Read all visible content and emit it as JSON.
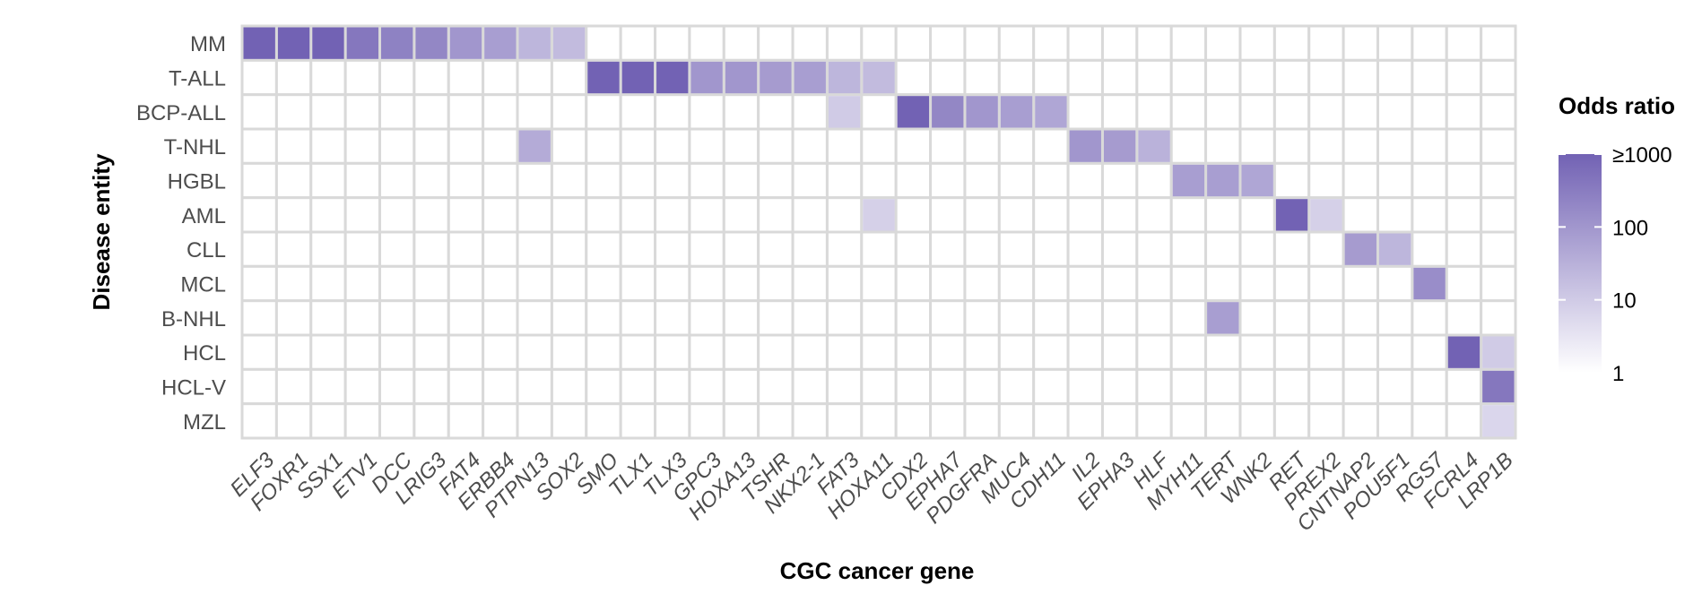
{
  "chart_data": {
    "type": "heatmap",
    "xlabel": "CGC cancer gene",
    "ylabel": "Disease entity",
    "rows": [
      "MM",
      "T-ALL",
      "BCP-ALL",
      "T-NHL",
      "HGBL",
      "AML",
      "CLL",
      "MCL",
      "B-NHL",
      "HCL",
      "HCL-V",
      "MZL"
    ],
    "columns": [
      "ELF3",
      "FOXR1",
      "SSX1",
      "ETV1",
      "DCC",
      "LRIG3",
      "FAT4",
      "ERBB4",
      "PTPN13",
      "SOX2",
      "SMO",
      "TLX1",
      "TLX3",
      "GPC3",
      "HOXA13",
      "TSHR",
      "NKX2-1",
      "FAT3",
      "HOXA11",
      "CDX2",
      "EPHA7",
      "PDGFRA",
      "MUC4",
      "CDH11",
      "IL2",
      "EPHA3",
      "HLF",
      "MYH11",
      "TERT",
      "WNK2",
      "RET",
      "PREX2",
      "CNTNAP2",
      "POU5F1",
      "RGS7",
      "FCRL4",
      "LRP1B"
    ],
    "cells": [
      {
        "row": "MM",
        "col": "ELF3",
        "odds_ratio": 1000
      },
      {
        "row": "MM",
        "col": "FOXR1",
        "odds_ratio": 1000
      },
      {
        "row": "MM",
        "col": "SSX1",
        "odds_ratio": 1000
      },
      {
        "row": "MM",
        "col": "ETV1",
        "odds_ratio": 400
      },
      {
        "row": "MM",
        "col": "DCC",
        "odds_ratio": 250
      },
      {
        "row": "MM",
        "col": "LRIG3",
        "odds_ratio": 200
      },
      {
        "row": "MM",
        "col": "FAT4",
        "odds_ratio": 100
      },
      {
        "row": "MM",
        "col": "ERBB4",
        "odds_ratio": 70
      },
      {
        "row": "MM",
        "col": "PTPN13",
        "odds_ratio": 25
      },
      {
        "row": "MM",
        "col": "SOX2",
        "odds_ratio": 20
      },
      {
        "row": "T-ALL",
        "col": "SMO",
        "odds_ratio": 1000
      },
      {
        "row": "T-ALL",
        "col": "TLX1",
        "odds_ratio": 1000
      },
      {
        "row": "T-ALL",
        "col": "TLX3",
        "odds_ratio": 1000
      },
      {
        "row": "T-ALL",
        "col": "GPC3",
        "odds_ratio": 100
      },
      {
        "row": "T-ALL",
        "col": "HOXA13",
        "odds_ratio": 100
      },
      {
        "row": "T-ALL",
        "col": "TSHR",
        "odds_ratio": 80
      },
      {
        "row": "T-ALL",
        "col": "NKX2-1",
        "odds_ratio": 70
      },
      {
        "row": "T-ALL",
        "col": "FAT3",
        "odds_ratio": 25
      },
      {
        "row": "T-ALL",
        "col": "HOXA11",
        "odds_ratio": 20
      },
      {
        "row": "BCP-ALL",
        "col": "FAT3",
        "odds_ratio": 10
      },
      {
        "row": "BCP-ALL",
        "col": "CDX2",
        "odds_ratio": 1000
      },
      {
        "row": "BCP-ALL",
        "col": "EPHA7",
        "odds_ratio": 200
      },
      {
        "row": "BCP-ALL",
        "col": "PDGFRA",
        "odds_ratio": 100
      },
      {
        "row": "BCP-ALL",
        "col": "MUC4",
        "odds_ratio": 70
      },
      {
        "row": "BCP-ALL",
        "col": "CDH11",
        "odds_ratio": 50
      },
      {
        "row": "T-NHL",
        "col": "PTPN13",
        "odds_ratio": 40
      },
      {
        "row": "T-NHL",
        "col": "IL2",
        "odds_ratio": 100
      },
      {
        "row": "T-NHL",
        "col": "EPHA3",
        "odds_ratio": 80
      },
      {
        "row": "T-NHL",
        "col": "HLF",
        "odds_ratio": 30
      },
      {
        "row": "HGBL",
        "col": "MYH11",
        "odds_ratio": 70
      },
      {
        "row": "HGBL",
        "col": "TERT",
        "odds_ratio": 70
      },
      {
        "row": "HGBL",
        "col": "WNK2",
        "odds_ratio": 50
      },
      {
        "row": "AML",
        "col": "HOXA11",
        "odds_ratio": 8
      },
      {
        "row": "AML",
        "col": "RET",
        "odds_ratio": 1000
      },
      {
        "row": "AML",
        "col": "PREX2",
        "odds_ratio": 8
      },
      {
        "row": "CLL",
        "col": "CNTNAP2",
        "odds_ratio": 80
      },
      {
        "row": "CLL",
        "col": "POU5F1",
        "odds_ratio": 25
      },
      {
        "row": "MCL",
        "col": "RGS7",
        "odds_ratio": 150
      },
      {
        "row": "B-NHL",
        "col": "TERT",
        "odds_ratio": 70
      },
      {
        "row": "HCL",
        "col": "FCRL4",
        "odds_ratio": 1000
      },
      {
        "row": "HCL",
        "col": "LRP1B",
        "odds_ratio": 10
      },
      {
        "row": "HCL-V",
        "col": "LRP1B",
        "odds_ratio": 400
      },
      {
        "row": "MZL",
        "col": "LRP1B",
        "odds_ratio": 6
      }
    ],
    "legend": {
      "title": "Odds ratio",
      "scale": "log",
      "range": [
        1,
        1000
      ],
      "breaks": [
        1000,
        100,
        10,
        1
      ],
      "labels": [
        "≥1000",
        "100",
        "10",
        "1"
      ],
      "position": "right"
    },
    "colors": {
      "low": "#ffffff",
      "high": "#7262b4",
      "grid": "#d9d9d9"
    }
  }
}
